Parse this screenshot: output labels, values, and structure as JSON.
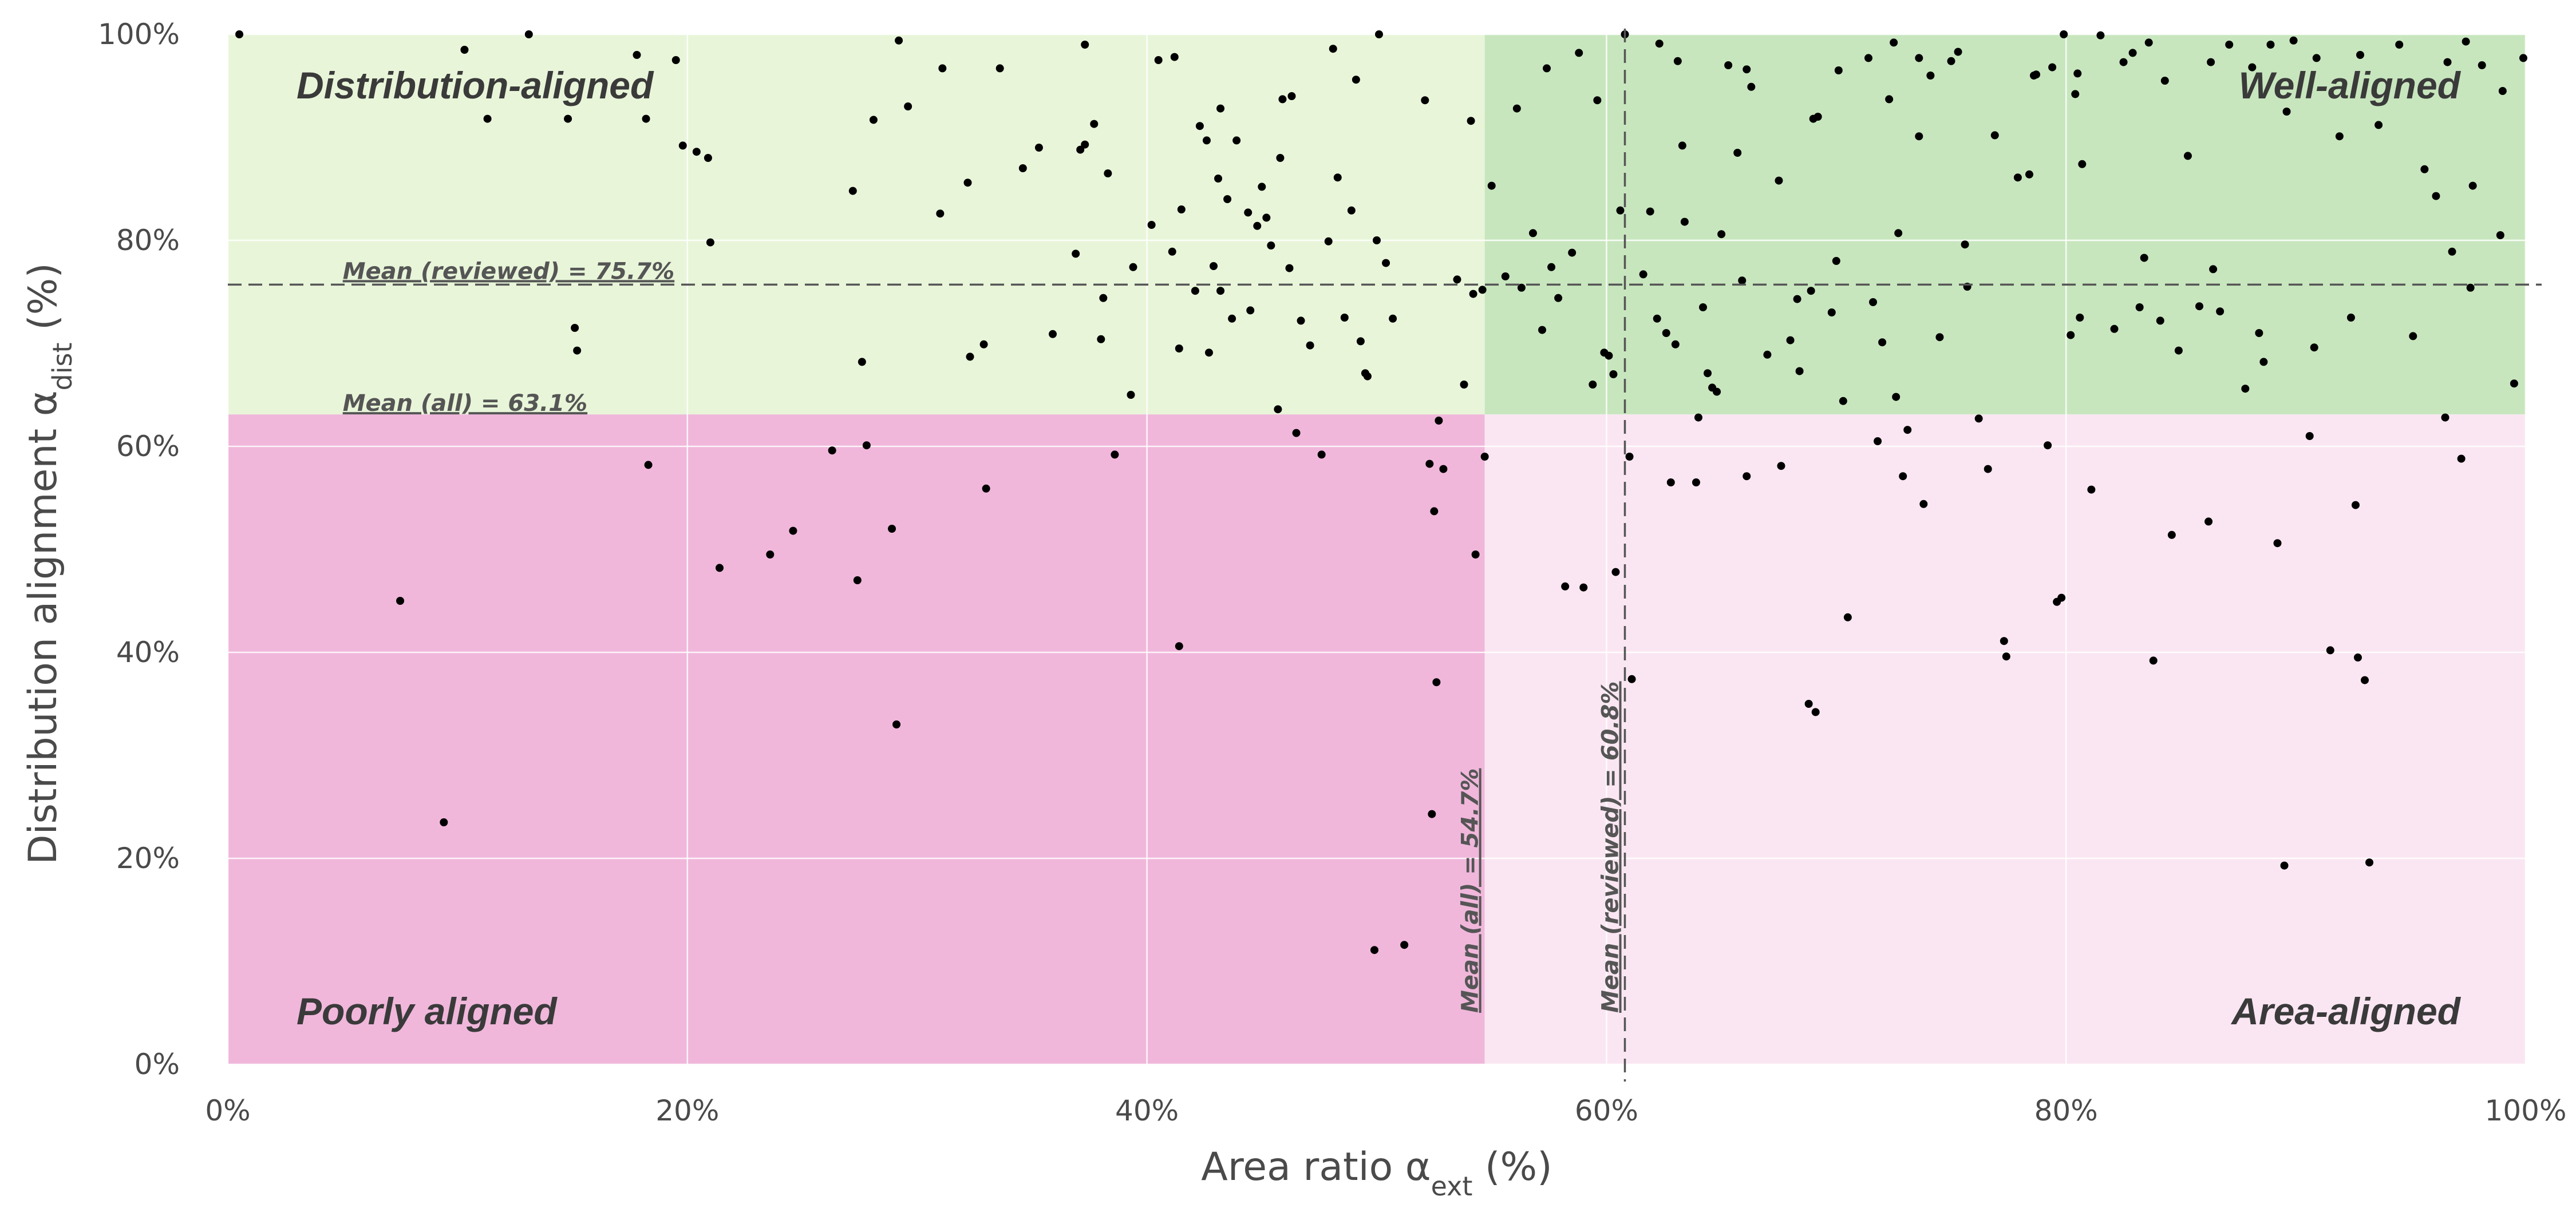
{
  "colors": {
    "distribution_aligned": "#e8f5d9",
    "well_aligned": "#c8e6be",
    "poorly_aligned": "#f0b7db",
    "area_aligned": "#fae6f2",
    "points": "#000000",
    "mean_line": "#555555"
  },
  "chart_data": {
    "type": "scatter",
    "xlabel": "Area ratio α",
    "xlabel_sub": "ext",
    "xlabel_unit": " (%)",
    "ylabel": "Distribution alignment α",
    "ylabel_sub": "dist",
    "ylabel_unit": " (%)",
    "xlim": [
      0,
      100
    ],
    "ylim": [
      0,
      100
    ],
    "x_ticks": [
      0,
      20,
      40,
      60,
      80,
      100
    ],
    "x_tick_labels": [
      "0%",
      "20%",
      "40%",
      "60%",
      "80%",
      "100%"
    ],
    "y_ticks": [
      0,
      20,
      40,
      60,
      80,
      100
    ],
    "y_tick_labels": [
      "0%",
      "20%",
      "40%",
      "60%",
      "80%",
      "100%"
    ],
    "grid": true,
    "quadrants": {
      "x_threshold": 54.7,
      "y_threshold": 63.1,
      "top_left": "Distribution-aligned",
      "top_right": "Well-aligned",
      "bottom_left": "Poorly aligned",
      "bottom_right": "Area-aligned"
    },
    "mean_lines": {
      "reviewed_y": {
        "value": 75.7,
        "label": "Mean (reviewed) = 75.7%"
      },
      "all_y": {
        "value": 63.1,
        "label": "Mean (all) = 63.1%"
      },
      "all_x": {
        "value": 54.7,
        "label": "Mean (all) = 54.7%"
      },
      "reviewed_x": {
        "value": 60.8,
        "label": "Mean (reviewed) = 60.8%"
      }
    },
    "points": [
      [
        0.5,
        100
      ],
      [
        10.3,
        98.5
      ],
      [
        11.3,
        91.8
      ],
      [
        13.1,
        100
      ],
      [
        14.8,
        91.8
      ],
      [
        17.8,
        98
      ],
      [
        18.2,
        91.8
      ],
      [
        19.5,
        97.5
      ],
      [
        19.8,
        89.2
      ],
      [
        20.4,
        88.6
      ],
      [
        20.9,
        88
      ],
      [
        15.1,
        71.5
      ],
      [
        15.2,
        69.3
      ],
      [
        21,
        79.8
      ],
      [
        18.3,
        58.2
      ],
      [
        7.5,
        45
      ],
      [
        9.4,
        23.5
      ],
      [
        21.4,
        48.2
      ],
      [
        23.6,
        49.5
      ],
      [
        24.6,
        51.8
      ],
      [
        26.3,
        59.6
      ],
      [
        27.2,
        84.8
      ],
      [
        27.4,
        47
      ],
      [
        27.6,
        68.2
      ],
      [
        27.8,
        60.1
      ],
      [
        28.1,
        91.7
      ],
      [
        28.9,
        52
      ],
      [
        29.1,
        33
      ],
      [
        29.2,
        99.4
      ],
      [
        29.6,
        93
      ],
      [
        31,
        82.6
      ],
      [
        31.1,
        96.7
      ],
      [
        32.2,
        85.6
      ],
      [
        32.3,
        68.7
      ],
      [
        32.9,
        69.9
      ],
      [
        33,
        55.9
      ],
      [
        33.6,
        96.7
      ],
      [
        34.6,
        87
      ],
      [
        35.3,
        89
      ],
      [
        35.9,
        70.9
      ],
      [
        36.9,
        78.7
      ],
      [
        37.1,
        88.8
      ],
      [
        37.3,
        89.3
      ],
      [
        37.3,
        99
      ],
      [
        37.7,
        91.3
      ],
      [
        38.1,
        74.4
      ],
      [
        38,
        70.4
      ],
      [
        38.3,
        86.5
      ],
      [
        38.6,
        59.2
      ],
      [
        39.3,
        65
      ],
      [
        39.4,
        77.4
      ],
      [
        40.2,
        81.5
      ],
      [
        40.5,
        97.5
      ],
      [
        41.1,
        78.9
      ],
      [
        41.2,
        97.8
      ],
      [
        41.4,
        69.5
      ],
      [
        41.5,
        83
      ],
      [
        41.4,
        40.6
      ],
      [
        42.1,
        75.1
      ],
      [
        42.3,
        91.1
      ],
      [
        42.6,
        89.7
      ],
      [
        42.7,
        69.1
      ],
      [
        42.9,
        77.5
      ],
      [
        43.1,
        86
      ],
      [
        43.2,
        92.8
      ],
      [
        43.2,
        75.1
      ],
      [
        43.5,
        84
      ],
      [
        43.7,
        72.4
      ],
      [
        43.9,
        89.7
      ],
      [
        44.4,
        82.7
      ],
      [
        44.5,
        73.2
      ],
      [
        44.8,
        81.4
      ],
      [
        45,
        85.2
      ],
      [
        45.2,
        82.2
      ],
      [
        45.4,
        79.5
      ],
      [
        45.7,
        63.6
      ],
      [
        45.8,
        88
      ],
      [
        45.9,
        93.7
      ],
      [
        46.2,
        77.3
      ],
      [
        46.3,
        94
      ],
      [
        46.5,
        61.3
      ],
      [
        46.7,
        72.2
      ],
      [
        47.1,
        69.8
      ],
      [
        47.6,
        59.2
      ],
      [
        47.9,
        79.9
      ],
      [
        48.1,
        98.6
      ],
      [
        48.3,
        86.1
      ],
      [
        48.6,
        72.5
      ],
      [
        48.9,
        82.9
      ],
      [
        49.1,
        95.6
      ],
      [
        49.3,
        70.2
      ],
      [
        49.5,
        67.1
      ],
      [
        49.6,
        66.8
      ],
      [
        50,
        80
      ],
      [
        50.1,
        100
      ],
      [
        50.4,
        77.8
      ],
      [
        50.7,
        72.4
      ],
      [
        52.1,
        93.6
      ],
      [
        52.3,
        58.3
      ],
      [
        52.5,
        53.7
      ],
      [
        52.6,
        37.1
      ],
      [
        52.7,
        62.5
      ],
      [
        52.9,
        57.8
      ],
      [
        53.5,
        76.2
      ],
      [
        53.8,
        66
      ],
      [
        54.1,
        91.6
      ],
      [
        54.2,
        74.8
      ],
      [
        54.3,
        49.5
      ],
      [
        54.6,
        75.2
      ],
      [
        54.7,
        59
      ],
      [
        55,
        85.3
      ],
      [
        55.6,
        76.5
      ],
      [
        56.1,
        92.8
      ],
      [
        56.3,
        75.4
      ],
      [
        56.8,
        80.7
      ],
      [
        57.2,
        71.3
      ],
      [
        57.4,
        96.7
      ],
      [
        57.6,
        77.4
      ],
      [
        57.9,
        74.4
      ],
      [
        58.2,
        46.4
      ],
      [
        58.5,
        78.8
      ],
      [
        58.8,
        98.2
      ],
      [
        59,
        46.3
      ],
      [
        59.4,
        66
      ],
      [
        59.6,
        93.6
      ],
      [
        59.9,
        69.1
      ],
      [
        60.1,
        68.8
      ],
      [
        60.3,
        67
      ],
      [
        60.4,
        47.8
      ],
      [
        60.8,
        100
      ],
      [
        61,
        59
      ],
      [
        61.1,
        37.4
      ],
      [
        61.6,
        76.7
      ],
      [
        61.9,
        82.8
      ],
      [
        62.2,
        72.4
      ],
      [
        62.6,
        71
      ],
      [
        62.8,
        56.5
      ],
      [
        63,
        69.9
      ],
      [
        63.3,
        89.2
      ],
      [
        63.4,
        81.8
      ],
      [
        63.9,
        56.5
      ],
      [
        64,
        62.8
      ],
      [
        64.2,
        73.5
      ],
      [
        64.4,
        67.1
      ],
      [
        64.6,
        65.7
      ],
      [
        65,
        80.6
      ],
      [
        65.3,
        97
      ],
      [
        65.7,
        88.5
      ],
      [
        66.1,
        96.6
      ],
      [
        66.3,
        94.9
      ],
      [
        66.1,
        57.1
      ],
      [
        67,
        68.9
      ],
      [
        67.6,
        58.1
      ],
      [
        68,
        70.3
      ],
      [
        68.4,
        67.3
      ],
      [
        68.8,
        35
      ],
      [
        69.1,
        34.2
      ],
      [
        69.2,
        92
      ],
      [
        69.8,
        73
      ],
      [
        70.3,
        64.4
      ],
      [
        70.5,
        43.4
      ],
      [
        71.4,
        97.7
      ],
      [
        71.8,
        60.5
      ],
      [
        72,
        70.1
      ],
      [
        72.5,
        99.2
      ],
      [
        72.6,
        64.8
      ],
      [
        72.9,
        57.1
      ],
      [
        73.1,
        61.6
      ],
      [
        73.6,
        97.7
      ],
      [
        73.8,
        54.4
      ],
      [
        74.5,
        70.6
      ],
      [
        75,
        97.4
      ],
      [
        75.3,
        98.3
      ],
      [
        75.6,
        79.6
      ],
      [
        76.2,
        62.7
      ],
      [
        76.6,
        57.8
      ],
      [
        77.3,
        41.1
      ],
      [
        77.4,
        39.6
      ],
      [
        77.9,
        86.1
      ],
      [
        78.6,
        96
      ],
      [
        79.2,
        60.1
      ],
      [
        79.6,
        44.9
      ],
      [
        79.8,
        45.3
      ],
      [
        80.2,
        70.8
      ],
      [
        80.4,
        94.2
      ],
      [
        80.6,
        72.5
      ],
      [
        81.1,
        55.8
      ],
      [
        82.5,
        97.3
      ],
      [
        83.2,
        73.5
      ],
      [
        83.4,
        78.3
      ],
      [
        83.8,
        39.2
      ],
      [
        84.1,
        72.2
      ],
      [
        84.6,
        51.4
      ],
      [
        84.9,
        69.3
      ],
      [
        85.3,
        88.2
      ],
      [
        85.8,
        73.6
      ],
      [
        86.2,
        52.7
      ],
      [
        86.7,
        73.1
      ],
      [
        87.8,
        65.6
      ],
      [
        88.1,
        96.8
      ],
      [
        88.4,
        71
      ],
      [
        88.6,
        68.2
      ],
      [
        89.2,
        50.6
      ],
      [
        89.5,
        19.3
      ],
      [
        89.9,
        99.4
      ],
      [
        90.6,
        61
      ],
      [
        90.8,
        69.6
      ],
      [
        91.5,
        40.2
      ],
      [
        92.4,
        72.5
      ],
      [
        92.6,
        54.3
      ],
      [
        92.7,
        39.5
      ],
      [
        93,
        37.3
      ],
      [
        93.2,
        19.6
      ],
      [
        93.6,
        91.2
      ],
      [
        94.5,
        99
      ],
      [
        95.6,
        86.9
      ],
      [
        96.1,
        84.3
      ],
      [
        96.5,
        62.8
      ],
      [
        96.8,
        78.9
      ],
      [
        97.2,
        58.8
      ],
      [
        97.4,
        99.3
      ],
      [
        97.6,
        75.4
      ],
      [
        97.7,
        85.3
      ],
      [
        98.1,
        97
      ],
      [
        98.9,
        80.5
      ],
      [
        99.5,
        66.1
      ],
      [
        99.9,
        97.7
      ],
      [
        52.4,
        24.3
      ],
      [
        49.9,
        11.1
      ],
      [
        51.2,
        11.6
      ],
      [
        68.3,
        74.3
      ],
      [
        69,
        91.8
      ],
      [
        70.1,
        96.5
      ],
      [
        72.3,
        93.7
      ],
      [
        74.1,
        96
      ],
      [
        76.9,
        90.2
      ],
      [
        78.7,
        96.1
      ],
      [
        79.4,
        96.8
      ],
      [
        79.9,
        100
      ],
      [
        80.7,
        87.4
      ],
      [
        81.5,
        99.9
      ],
      [
        82.9,
        98.2
      ],
      [
        83.6,
        99.2
      ],
      [
        84.3,
        95.5
      ],
      [
        86.3,
        97.3
      ],
      [
        87.1,
        99
      ],
      [
        88.9,
        99
      ],
      [
        90.9,
        97.7
      ],
      [
        91.9,
        90.1
      ],
      [
        92.8,
        98
      ],
      [
        60.6,
        82.9
      ],
      [
        62.3,
        99.1
      ],
      [
        63.1,
        97.4
      ],
      [
        64.8,
        65.3
      ],
      [
        65.9,
        76.1
      ],
      [
        67.5,
        85.8
      ],
      [
        68.9,
        75.1
      ],
      [
        70,
        78
      ],
      [
        71.6,
        74
      ],
      [
        72.7,
        80.7
      ],
      [
        73.6,
        90.1
      ],
      [
        75.7,
        75.5
      ],
      [
        78.4,
        86.4
      ],
      [
        80.5,
        96.2
      ],
      [
        82.1,
        71.4
      ],
      [
        86.4,
        77.2
      ],
      [
        89.6,
        92.5
      ],
      [
        95.1,
        70.7
      ],
      [
        96.6,
        97.3
      ],
      [
        99,
        94.5
      ]
    ]
  }
}
